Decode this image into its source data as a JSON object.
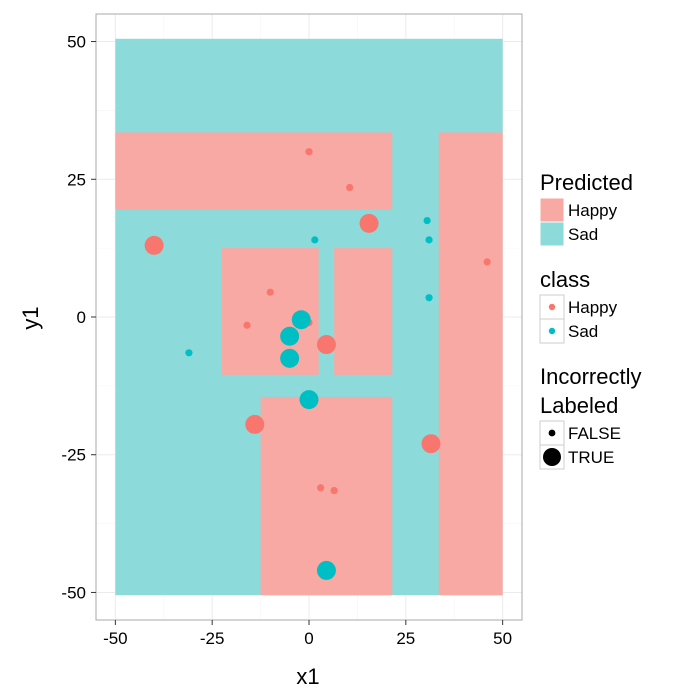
{
  "chart_data": {
    "type": "scatter",
    "xlabel": "x1",
    "ylabel": "y1",
    "xlim": [
      -55,
      55
    ],
    "ylim": [
      -55,
      55
    ],
    "x_ticks": [
      -50,
      -25,
      0,
      25,
      50
    ],
    "y_ticks": [
      -50,
      -25,
      0,
      25,
      50
    ],
    "x_tick_labels": [
      "-50",
      "-25",
      "0",
      "25",
      "50"
    ],
    "y_tick_labels": [
      "-50",
      "-25",
      "0",
      "25",
      "50"
    ],
    "grid": true,
    "legend_position": "right",
    "colors": {
      "Happy": "#F8766D",
      "Sad": "#00BFC4",
      "Happy_region": "#F8A9A4",
      "Sad_region": "#8CDBDA",
      "panel_border": "#AAAAAA",
      "grid": "#EBEBEB"
    },
    "regions": [
      {
        "predicted": "Sad",
        "xmin": -50,
        "xmax": 50,
        "ymin": -50.5,
        "ymax": 50.5
      },
      {
        "predicted": "Happy",
        "xmin": -50,
        "xmax": 21.5,
        "ymin": 19.5,
        "ymax": 33.5
      },
      {
        "predicted": "Happy",
        "xmin": 33.5,
        "xmax": 50,
        "ymin": -50.5,
        "ymax": 33.5
      },
      {
        "predicted": "Happy",
        "xmin": -22.5,
        "xmax": 2.5,
        "ymin": -10.5,
        "ymax": 12.5
      },
      {
        "predicted": "Happy",
        "xmin": 6.5,
        "xmax": 21.5,
        "ymin": -10.5,
        "ymax": 12.5
      },
      {
        "predicted": "Happy",
        "xmin": -12.5,
        "xmax": 21.5,
        "ymin": -50.5,
        "ymax": -14.5
      }
    ],
    "points": [
      {
        "x": 0,
        "y": 30,
        "class": "Happy",
        "incorrect": false
      },
      {
        "x": 10.5,
        "y": 23.5,
        "class": "Happy",
        "incorrect": false
      },
      {
        "x": 15.5,
        "y": 17,
        "class": "Happy",
        "incorrect": true
      },
      {
        "x": -40,
        "y": 13,
        "class": "Happy",
        "incorrect": true
      },
      {
        "x": 1.5,
        "y": 14,
        "class": "Sad",
        "incorrect": false
      },
      {
        "x": 30.5,
        "y": 17.5,
        "class": "Sad",
        "incorrect": false
      },
      {
        "x": 31,
        "y": 14,
        "class": "Sad",
        "incorrect": false
      },
      {
        "x": 46,
        "y": 10,
        "class": "Happy",
        "incorrect": false
      },
      {
        "x": -10,
        "y": 4.5,
        "class": "Happy",
        "incorrect": false
      },
      {
        "x": 31,
        "y": 3.5,
        "class": "Sad",
        "incorrect": false
      },
      {
        "x": -16,
        "y": -1.5,
        "class": "Happy",
        "incorrect": false
      },
      {
        "x": 0,
        "y": -1,
        "class": "Happy",
        "incorrect": false
      },
      {
        "x": -2,
        "y": -0.5,
        "class": "Sad",
        "incorrect": true
      },
      {
        "x": -5,
        "y": -3.5,
        "class": "Sad",
        "incorrect": true
      },
      {
        "x": -31,
        "y": -6.5,
        "class": "Sad",
        "incorrect": false
      },
      {
        "x": -5,
        "y": -7.5,
        "class": "Sad",
        "incorrect": true
      },
      {
        "x": 4.5,
        "y": -5,
        "class": "Happy",
        "incorrect": true
      },
      {
        "x": 0,
        "y": -15,
        "class": "Sad",
        "incorrect": true
      },
      {
        "x": -14,
        "y": -19.5,
        "class": "Happy",
        "incorrect": true
      },
      {
        "x": 31.5,
        "y": -23,
        "class": "Happy",
        "incorrect": true
      },
      {
        "x": 3,
        "y": -31,
        "class": "Happy",
        "incorrect": false
      },
      {
        "x": 6.5,
        "y": -31.5,
        "class": "Happy",
        "incorrect": false
      },
      {
        "x": 4.5,
        "y": -46,
        "class": "Sad",
        "incorrect": true
      }
    ],
    "legends": [
      {
        "title": [
          "Predicted"
        ],
        "kind": "fill",
        "entries": [
          {
            "label": "Happy",
            "key": "Happy"
          },
          {
            "label": "Sad",
            "key": "Sad"
          }
        ]
      },
      {
        "title": [
          "class"
        ],
        "kind": "color",
        "entries": [
          {
            "label": "Happy",
            "key": "Happy"
          },
          {
            "label": "Sad",
            "key": "Sad"
          }
        ]
      },
      {
        "title": [
          "Incorrectly",
          "Labeled"
        ],
        "kind": "size",
        "entries": [
          {
            "label": "FALSE",
            "key": false
          },
          {
            "label": "TRUE",
            "key": true
          }
        ]
      }
    ]
  }
}
